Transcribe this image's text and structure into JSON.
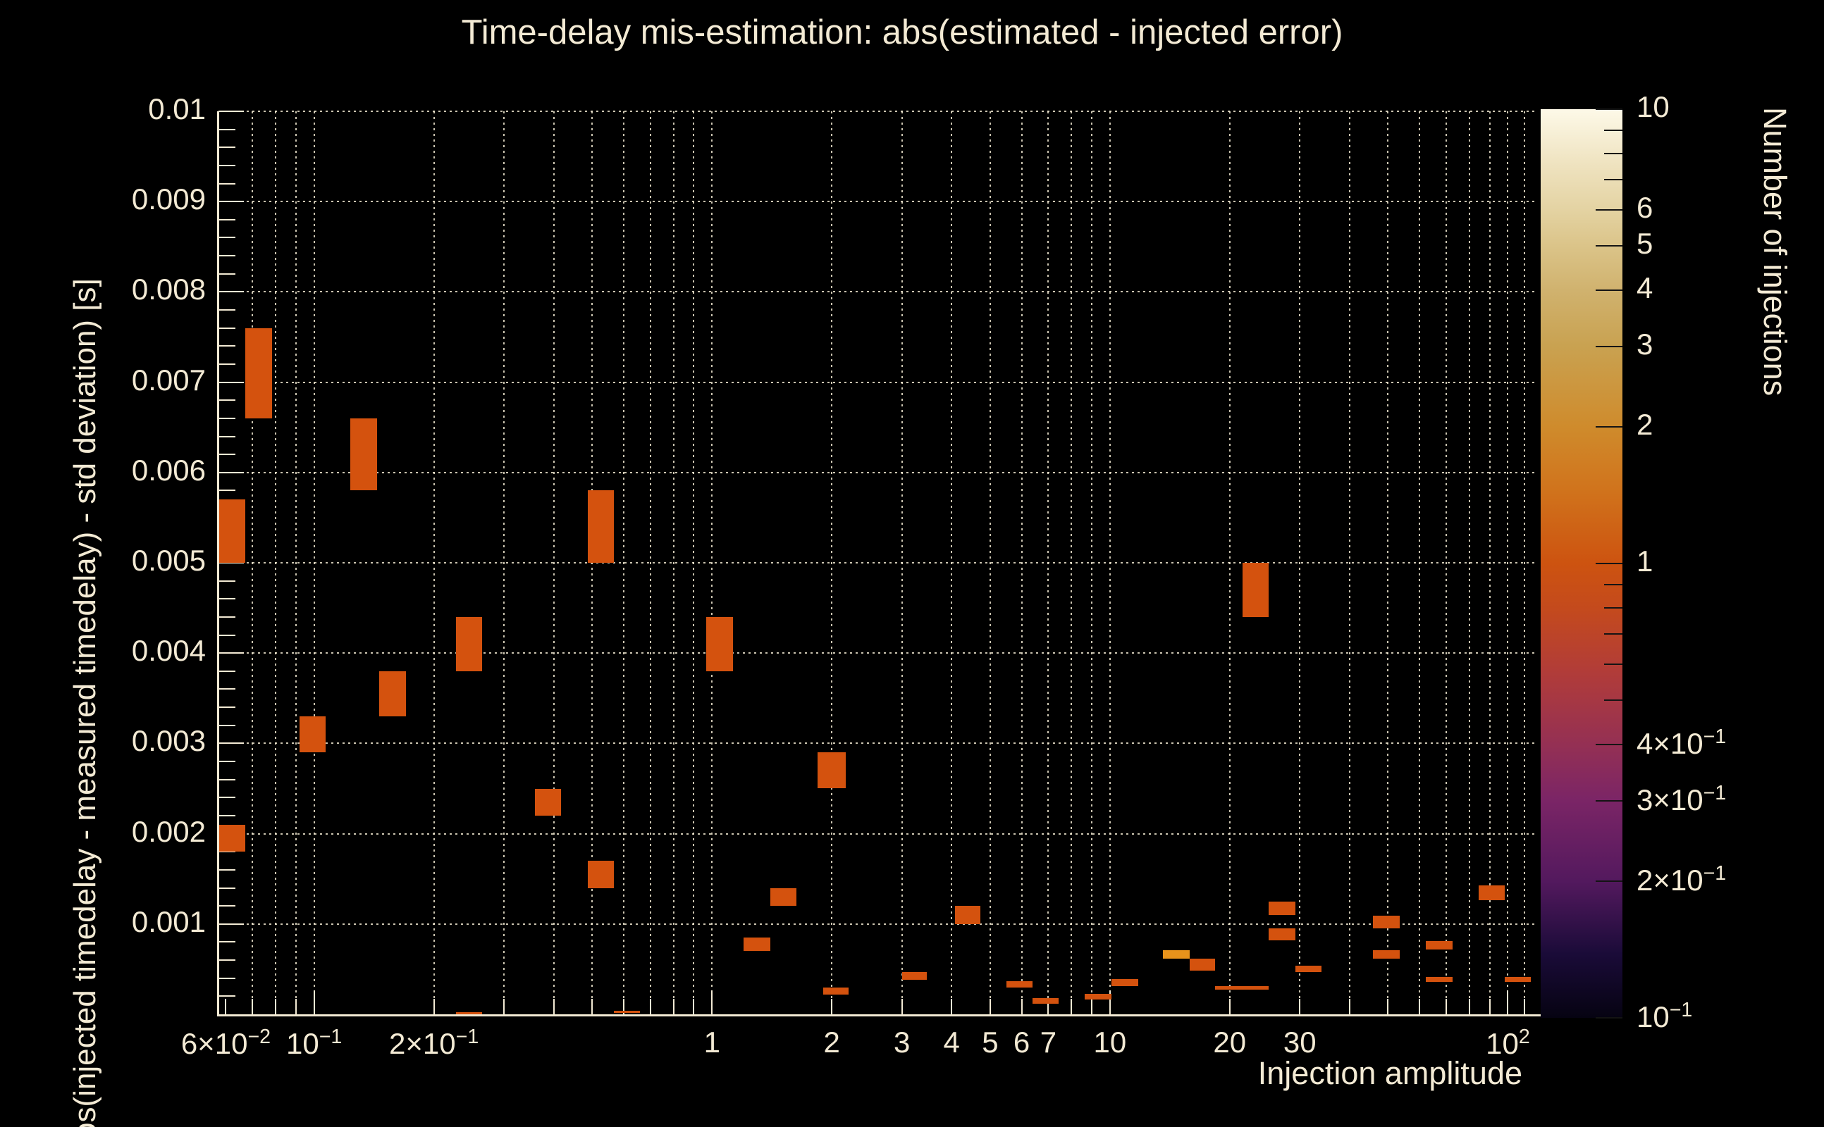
{
  "colors": {
    "background": "#000000",
    "text": "#f3ead4",
    "axis": "#f3ead4",
    "grid": "#efe6cf",
    "bin_count1": "#d4520e",
    "bin_count2": "#e8931b",
    "colorbar_tick": "#141414"
  },
  "chart_data": {
    "type": "heatmap",
    "title": "Time-delay mis-estimation: abs(estimated - injected error)",
    "xlabel": "Injection amplitude",
    "ylabel": "bs(injected timedelay - measured timedelay) - std deviation) [s]",
    "x_scale": "log",
    "x_range": [
      0.0575,
      118
    ],
    "y_scale": "linear",
    "y_range": [
      0,
      0.01
    ],
    "grid": "dotted lines at every major tick, both axes",
    "x_tick_labels": [
      {
        "value": 0.06,
        "label": "6×10^-2"
      },
      {
        "value": 0.1,
        "label": "10^-1"
      },
      {
        "value": 0.2,
        "label": "2×10^-1"
      },
      {
        "value": 1,
        "label": "1"
      },
      {
        "value": 2,
        "label": "2"
      },
      {
        "value": 3,
        "label": "3"
      },
      {
        "value": 4,
        "label": "4"
      },
      {
        "value": 5,
        "label": "5"
      },
      {
        "value": 6,
        "label": "6"
      },
      {
        "value": 7,
        "label": "7"
      },
      {
        "value": 10,
        "label": "10"
      },
      {
        "value": 20,
        "label": "20"
      },
      {
        "value": 30,
        "label": "30"
      },
      {
        "value": 100,
        "label": "10^2"
      }
    ],
    "x_grid_values": [
      0.07,
      0.08,
      0.09,
      0.1,
      0.2,
      0.3,
      0.4,
      0.5,
      0.6,
      0.7,
      0.8,
      0.9,
      1,
      2,
      3,
      4,
      5,
      6,
      7,
      8,
      9,
      10,
      20,
      30,
      40,
      50,
      60,
      70,
      80,
      90,
      100,
      110
    ],
    "x_axis_tick_values": [
      0.06,
      0.07,
      0.08,
      0.09,
      0.1,
      0.2,
      0.3,
      0.4,
      0.5,
      0.6,
      0.7,
      0.8,
      0.9,
      1,
      2,
      3,
      4,
      5,
      6,
      7,
      8,
      9,
      10,
      20,
      30,
      40,
      50,
      60,
      70,
      80,
      90,
      100,
      110
    ],
    "y_tick_labels": [
      {
        "value": 0.001,
        "label": "0.001"
      },
      {
        "value": 0.002,
        "label": "0.002"
      },
      {
        "value": 0.003,
        "label": "0.003"
      },
      {
        "value": 0.004,
        "label": "0.004"
      },
      {
        "value": 0.005,
        "label": "0.005"
      },
      {
        "value": 0.006,
        "label": "0.006"
      },
      {
        "value": 0.007,
        "label": "0.007"
      },
      {
        "value": 0.008,
        "label": "0.008"
      },
      {
        "value": 0.009,
        "label": "0.009"
      },
      {
        "value": 0.01,
        "label": "0.01"
      }
    ],
    "y_minor_step": 0.0002,
    "colorbar": {
      "title": "Number of injections",
      "scale": "log",
      "range": [
        0.1,
        10
      ],
      "tick_labels": [
        {
          "value": 10,
          "label": "10"
        },
        {
          "value": 6,
          "label": "6"
        },
        {
          "value": 5,
          "label": "5"
        },
        {
          "value": 4,
          "label": "4"
        },
        {
          "value": 3,
          "label": "3"
        },
        {
          "value": 2,
          "label": "2"
        },
        {
          "value": 1,
          "label": "1"
        },
        {
          "value": 0.4,
          "label": "4×10^-1"
        },
        {
          "value": 0.3,
          "label": "3×10^-1"
        },
        {
          "value": 0.2,
          "label": "2×10^-1"
        },
        {
          "value": 0.1,
          "label": "10^-1"
        }
      ],
      "minor_tick_values": [
        9,
        8,
        7,
        0.9,
        0.8,
        0.7,
        0.6,
        0.5
      ],
      "gradient_stops": [
        [
          0.0,
          "#060312"
        ],
        [
          0.07,
          "#1a0b38"
        ],
        [
          0.15,
          "#53195e"
        ],
        [
          0.24,
          "#7b2566"
        ],
        [
          0.3,
          "#943054"
        ],
        [
          0.38,
          "#b13c39"
        ],
        [
          0.45,
          "#c44a1d"
        ],
        [
          0.5,
          "#cd5310"
        ],
        [
          0.58,
          "#d0731c"
        ],
        [
          0.65,
          "#cf8b2c"
        ],
        [
          0.74,
          "#c9a251"
        ],
        [
          0.8,
          "#d0b26e"
        ],
        [
          0.85,
          "#dbc489"
        ],
        [
          0.89,
          "#e4d3a3"
        ],
        [
          0.94,
          "#efe3c0"
        ],
        [
          1.0,
          "#fdf9e8"
        ]
      ]
    },
    "bins_format": [
      "amp_min",
      "amp_max",
      "err_min_s",
      "err_max_s",
      "count"
    ],
    "bins": [
      [
        0.0577,
        0.0671,
        0.005,
        0.0057,
        1
      ],
      [
        0.0577,
        0.0671,
        0.0018,
        0.0021,
        1
      ],
      [
        0.0671,
        0.0783,
        0.0066,
        0.0076,
        1
      ],
      [
        0.0918,
        0.1067,
        0.0029,
        0.0033,
        1
      ],
      [
        0.1231,
        0.1437,
        0.0058,
        0.0066,
        1
      ],
      [
        0.1455,
        0.1699,
        0.0033,
        0.0038,
        1
      ],
      [
        0.2277,
        0.2648,
        0.0038,
        0.0044,
        1
      ],
      [
        0.2277,
        0.2648,
        0.0,
        2e-05,
        1
      ],
      [
        0.3596,
        0.418,
        0.0022,
        0.0025,
        1
      ],
      [
        0.488,
        0.5675,
        0.005,
        0.0058,
        1
      ],
      [
        0.488,
        0.5675,
        0.0014,
        0.0017,
        1
      ],
      [
        0.5675,
        0.66,
        2e-05,
        4e-05,
        1
      ],
      [
        0.968,
        1.13,
        0.0038,
        0.0044,
        1
      ],
      [
        1.2,
        1.4,
        0.0007,
        0.00085,
        1
      ],
      [
        1.4,
        1.63,
        0.0012,
        0.0014,
        1
      ],
      [
        1.84,
        2.17,
        0.0025,
        0.0029,
        1
      ],
      [
        1.9,
        2.2,
        0.00022,
        0.0003,
        1
      ],
      [
        3.0,
        3.47,
        0.00038,
        0.00047,
        1
      ],
      [
        4.08,
        4.72,
        0.001,
        0.0012,
        1
      ],
      [
        5.49,
        6.39,
        0.0003,
        0.00037,
        1
      ],
      [
        6.39,
        7.43,
        0.00012,
        0.00018,
        1
      ],
      [
        8.64,
        10.08,
        0.00016,
        0.00023,
        1
      ],
      [
        10.08,
        11.77,
        0.00031,
        0.00039,
        1
      ],
      [
        13.6,
        15.85,
        0.00062,
        0.00071,
        2
      ],
      [
        15.85,
        18.4,
        0.00048,
        0.00062,
        1
      ],
      [
        18.4,
        25.1,
        0.00027,
        0.00031,
        1
      ],
      [
        21.5,
        25.1,
        0.0044,
        0.005,
        1
      ],
      [
        25.1,
        29.2,
        0.0011,
        0.00125,
        1
      ],
      [
        25.1,
        29.2,
        0.00082,
        0.00095,
        1
      ],
      [
        29.2,
        34.0,
        0.00047,
        0.00054,
        1
      ],
      [
        45.9,
        53.4,
        0.00095,
        0.00109,
        1
      ],
      [
        45.9,
        53.4,
        0.00062,
        0.00071,
        1
      ],
      [
        62.3,
        72.5,
        0.00072,
        0.00081,
        1
      ],
      [
        62.3,
        72.5,
        0.00036,
        0.00041,
        1
      ],
      [
        84.6,
        98.4,
        0.00126,
        0.00143,
        1
      ],
      [
        98.4,
        114.4,
        0.00036,
        0.00041,
        1
      ]
    ]
  }
}
